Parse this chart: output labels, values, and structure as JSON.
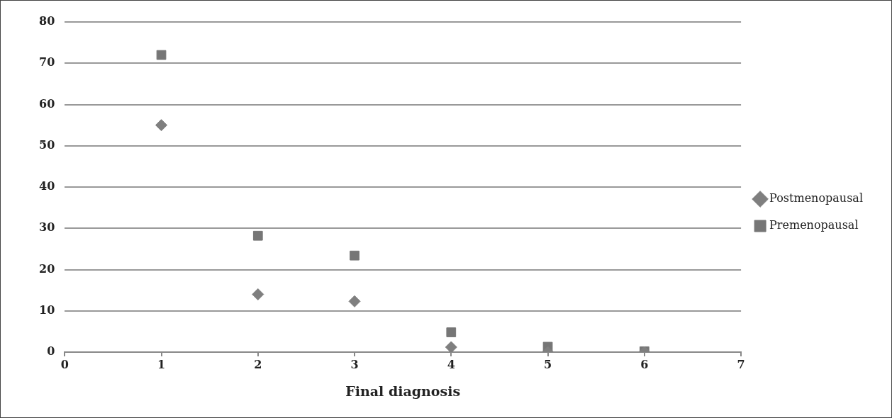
{
  "chart_data": {
    "type": "scatter",
    "xlabel": "Final diagnosis",
    "x": [
      1,
      2,
      3,
      4,
      5,
      6
    ],
    "series": [
      {
        "name": "Postmenopausal",
        "color": "#7f7f7f",
        "marker": "diamond",
        "values": [
          55,
          14,
          12.3,
          1.2,
          0,
          0
        ]
      },
      {
        "name": "Premenopausal",
        "color": "#767676",
        "marker": "square",
        "values": [
          72,
          28.2,
          23.4,
          4.8,
          1.3,
          0.2
        ]
      }
    ],
    "xlim": [
      0,
      7
    ],
    "xticks": [
      0,
      1,
      2,
      3,
      4,
      5,
      6,
      7
    ],
    "ylim": [
      0,
      80
    ],
    "yticks": [
      0,
      10,
      20,
      30,
      40,
      50,
      60,
      70,
      80
    ],
    "grid": "y",
    "legend": "right"
  }
}
